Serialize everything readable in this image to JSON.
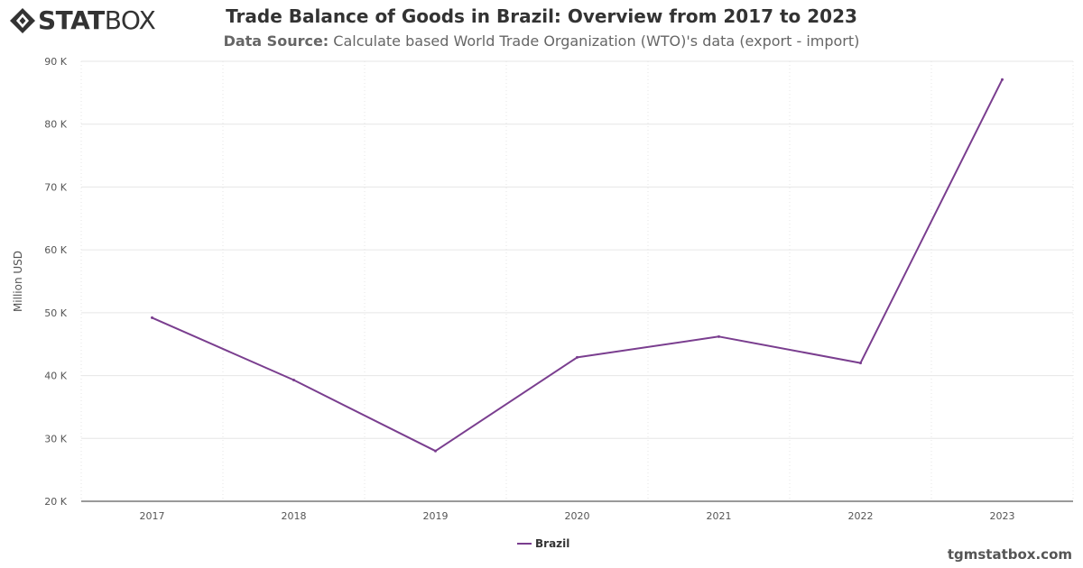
{
  "brand": {
    "logo_bold": "STAT",
    "logo_light": "BOX",
    "logo_icon": "diamond-arrows-icon"
  },
  "header": {
    "title": "Trade Balance of Goods in Brazil: Overview from 2017 to 2023",
    "subtitle_label": "Data Source:",
    "subtitle_text": "Calculate based World Trade Organization (WTO)'s data (export - import)"
  },
  "footer": {
    "site": "tgmstatbox.com"
  },
  "colors": {
    "series": "#7a3e8f",
    "grid": "#e6e6e6",
    "axis": "#333333"
  },
  "chart_data": {
    "type": "line",
    "title": "Trade Balance of Goods in Brazil: Overview from 2017 to 2023",
    "xlabel": "",
    "ylabel": "Million USD",
    "categories": [
      "2017",
      "2018",
      "2019",
      "2020",
      "2021",
      "2022",
      "2023"
    ],
    "series": [
      {
        "name": "Brazil",
        "values": [
          49200,
          39300,
          28000,
          42900,
          46200,
          42000,
          87100
        ]
      }
    ],
    "ylim": [
      20000,
      90000
    ],
    "yticks": [
      20000,
      30000,
      40000,
      50000,
      60000,
      70000,
      80000,
      90000
    ],
    "ytick_labels": [
      "20 K",
      "30 K",
      "40 K",
      "50 K",
      "60 K",
      "70 K",
      "80 K",
      "90 K"
    ],
    "grid": true,
    "legend": "bottom-center"
  }
}
